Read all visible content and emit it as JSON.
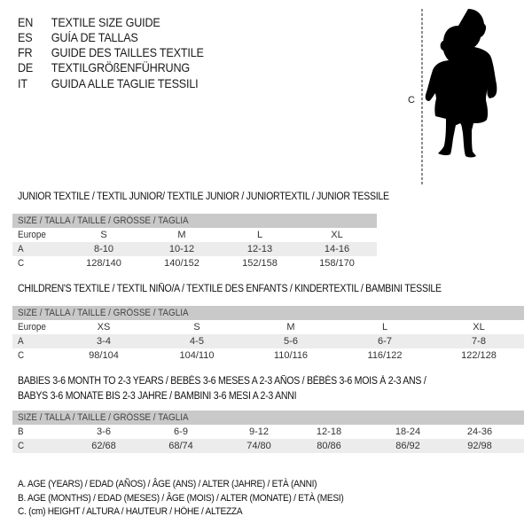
{
  "languages": [
    {
      "code": "EN",
      "title": "TEXTILE SIZE GUIDE"
    },
    {
      "code": "ES",
      "title": "GUÍA DE TALLAS"
    },
    {
      "code": "FR",
      "title": "GUIDE DES TAILLES TEXTILE"
    },
    {
      "code": "DE",
      "title": "TEXTILGRÖßENFÜHRUNG"
    },
    {
      "code": "IT",
      "title": "GUIDA ALLE TAGLIE TESSILI"
    }
  ],
  "figure": {
    "height_label": "C",
    "icon": "child-silhouette"
  },
  "colors": {
    "header_bg": "#c9c9c9",
    "alt_row_bg": "#ececec"
  },
  "sections": [
    {
      "title": [
        "JUNIOR TEXTILE / TEXTIL JUNIOR/ TEXTILE JUNIOR / JUNIORTEXTIL / JUNIOR TESSILE"
      ],
      "header": "SIZE / TALLA / TAILLE / GRÖSSE / TAGLIA",
      "rows": [
        {
          "label": "Europe",
          "cells": [
            "S",
            "M",
            "L",
            "XL"
          ]
        },
        {
          "label": "A",
          "cells": [
            "8-10",
            "10-12",
            "12-13",
            "14-16"
          ]
        },
        {
          "label": "C",
          "cells": [
            "128/140",
            "140/152",
            "152/158",
            "158/170"
          ]
        }
      ]
    },
    {
      "title": [
        "CHILDREN'S TEXTILE / TEXTIL NIÑO/A / TEXTILE DES ENFANTS / KINDERTEXTIL / BAMBINI TESSILE"
      ],
      "header": "SIZE / TALLA / TAILLE / GRÖSSE / TAGLIA",
      "rows": [
        {
          "label": "Europe",
          "cells": [
            "XS",
            "S",
            "M",
            "L",
            "XL"
          ]
        },
        {
          "label": "A",
          "cells": [
            "3-4",
            "4-5",
            "5-6",
            "6-7",
            "7-8"
          ]
        },
        {
          "label": "C",
          "cells": [
            "98/104",
            "104/110",
            "110/116",
            "116/122",
            "122/128"
          ]
        }
      ]
    },
    {
      "title": [
        "BABIES 3-6 MONTH TO 2-3 YEARS / BEBÉS 3-6 MESES A 2-3 AÑOS / BÉBÉS 3-6 MOIS À 2-3 ANS /",
        "BABYS 3-6 MONATE BIS 2-3 JAHRE / BAMBINI 3-6 MESI A 2-3 ANNI"
      ],
      "header": "SIZE / TALLA / TAILLE / GRÖSSE / TAGLIA",
      "rows": [
        {
          "label": "B",
          "cells": [
            "3-6",
            "6-9",
            "9-12",
            "12-18",
            "18-24",
            "24-36"
          ]
        },
        {
          "label": "C",
          "cells": [
            "62/68",
            "68/74",
            "74/80",
            "80/86",
            "86/92",
            "92/98"
          ]
        }
      ]
    }
  ],
  "notes": [
    "A. AGE (YEARS) / EDAD (AÑOS) / ÂGE (ANS) / ALTER (JAHRE) / ETÀ (ANNI)",
    "B. AGE (MONTHS) / EDAD (MESES) / ÂGE (MOIS) / ALTER (MONATE) / ETÀ (MESI)",
    "C. (cm) HEIGHT / ALTURA / HAUTEUR / HÖHE / ALTEZZA"
  ]
}
